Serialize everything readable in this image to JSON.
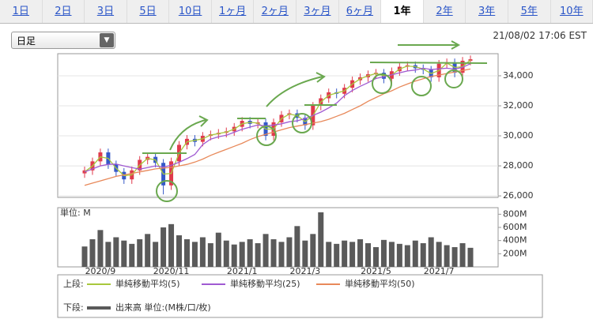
{
  "tabs": [
    {
      "label": "1日",
      "selected": false
    },
    {
      "label": "2日",
      "selected": false
    },
    {
      "label": "3日",
      "selected": false
    },
    {
      "label": "5日",
      "selected": false
    },
    {
      "label": "10日",
      "selected": false
    },
    {
      "label": "1ヶ月",
      "selected": false
    },
    {
      "label": "2ヶ月",
      "selected": false
    },
    {
      "label": "3ヶ月",
      "selected": false
    },
    {
      "label": "6ヶ月",
      "selected": false
    },
    {
      "label": "1年",
      "selected": true
    },
    {
      "label": "2年",
      "selected": false
    },
    {
      "label": "3年",
      "selected": false
    },
    {
      "label": "5年",
      "selected": false
    },
    {
      "label": "10年",
      "selected": false
    }
  ],
  "dropdown": "日足",
  "timestamp": "21/08/02 17:06 EST",
  "legend": {
    "upper_label": "上段:",
    "lower_label": "下段:"
  },
  "chart_data": [
    {
      "type": "candlestick",
      "up_color": "#e03a4c",
      "down_color": "#3558c8",
      "open": [
        27500,
        27700,
        28300,
        28900,
        28100,
        27600,
        27100,
        27700,
        28400,
        28600,
        28200,
        26700,
        28300,
        29400,
        29800,
        29600,
        30000,
        30100,
        30200,
        30300,
        30600,
        31000,
        30800,
        30900,
        30000,
        30900,
        31400,
        31500,
        31200,
        30700,
        32000,
        32500,
        32900,
        32800,
        33200,
        33700,
        33900,
        34100,
        34200,
        33800,
        34300,
        34600,
        34700,
        34500,
        34400,
        33900,
        34800,
        34900,
        34200,
        35000
      ],
      "high": [
        27950,
        28550,
        29150,
        29150,
        28350,
        27850,
        27950,
        28650,
        28850,
        28850,
        28450,
        28550,
        29650,
        30050,
        30050,
        30250,
        30350,
        30450,
        30550,
        30850,
        31250,
        31250,
        31150,
        31150,
        31150,
        31650,
        31750,
        31750,
        31450,
        32250,
        32750,
        33150,
        33150,
        33450,
        33950,
        34150,
        34350,
        34450,
        34450,
        34550,
        34850,
        34950,
        34950,
        34750,
        34650,
        35050,
        35150,
        35150,
        35250,
        35350
      ],
      "low": [
        27200,
        27400,
        28000,
        27800,
        27300,
        26800,
        26800,
        27400,
        28100,
        27900,
        26100,
        26400,
        28000,
        29100,
        29300,
        29300,
        29700,
        29800,
        29900,
        30000,
        30300,
        30500,
        30500,
        29700,
        29700,
        30600,
        31100,
        30900,
        30400,
        30400,
        31700,
        32200,
        32500,
        32500,
        32900,
        33400,
        33600,
        33800,
        33500,
        33500,
        34000,
        34300,
        34200,
        34100,
        33600,
        33600,
        34500,
        33900,
        33900,
        34700
      ],
      "close": [
        27700,
        28300,
        28900,
        28100,
        27600,
        27100,
        27700,
        28400,
        28600,
        28200,
        26700,
        28300,
        29400,
        29800,
        29600,
        30000,
        30100,
        30200,
        30300,
        30600,
        31000,
        30800,
        30900,
        30000,
        30900,
        31400,
        31500,
        31200,
        30700,
        32000,
        32500,
        32900,
        32800,
        33200,
        33700,
        33900,
        34100,
        34200,
        33800,
        34300,
        34600,
        34700,
        34500,
        34400,
        33900,
        34800,
        34900,
        34200,
        35000,
        35100
      ],
      "series": [
        {
          "name": "単純移動平均(5)",
          "color": "#a8c83c",
          "values": [
            27600,
            28000,
            28600,
            28500,
            27850,
            27350,
            27400,
            28050,
            28500,
            28400,
            27450,
            27500,
            28850,
            29600,
            29700,
            29800,
            30050,
            30150,
            30250,
            30450,
            30800,
            30900,
            30850,
            30450,
            30450,
            31150,
            31450,
            31350,
            30950,
            31350,
            32250,
            32700,
            32850,
            33000,
            33450,
            33800,
            34000,
            34150,
            34000,
            34050,
            34450,
            34650,
            34600,
            34450,
            34150,
            34350,
            34850,
            34550,
            34600,
            35050
          ]
        },
        {
          "name": "単純移動平均(25)",
          "color": "#a05ad2",
          "values": [
            27600,
            27800,
            28000,
            28100,
            28120,
            28000,
            27880,
            27780,
            27880,
            28000,
            27920,
            28040,
            28240,
            28480,
            28760,
            29420,
            29780,
            29940,
            30040,
            30240,
            30440,
            30580,
            30720,
            30660,
            30720,
            30800,
            30940,
            31000,
            31140,
            31360,
            31580,
            31860,
            32180,
            32680,
            33020,
            33300,
            33540,
            33820,
            33940,
            34060,
            34200,
            34320,
            34380,
            34500,
            34420,
            34460,
            34500,
            34440,
            34560,
            34800
          ]
        },
        {
          "name": "単純移動平均(50)",
          "color": "#e8895a",
          "values": [
            26700,
            26850,
            27000,
            27150,
            27300,
            27400,
            27500,
            27600,
            27700,
            27800,
            27850,
            27900,
            28000,
            28100,
            28250,
            28450,
            28700,
            28900,
            29100,
            29300,
            29500,
            29750,
            29950,
            30100,
            30250,
            30400,
            30550,
            30650,
            30750,
            30850,
            30950,
            31100,
            31300,
            31500,
            31750,
            32000,
            32300,
            32550,
            32800,
            33000,
            33250,
            33450,
            33650,
            33800,
            33950,
            34050,
            34150,
            34250,
            34350,
            34450
          ]
        }
      ],
      "ylim": [
        25900,
        35470
      ],
      "yticks": [
        {
          "value": 26000,
          "label": "26,000"
        },
        {
          "value": 28000,
          "label": "28,000"
        },
        {
          "value": 30000,
          "label": "30,000"
        },
        {
          "value": 32000,
          "label": "32,000"
        },
        {
          "value": 34000,
          "label": "34,000"
        }
      ],
      "grid": true
    },
    {
      "type": "bar",
      "unit_label": "単位: M",
      "name": "出来高 単位:(M株/口/枚)",
      "color": "#5a5a5a",
      "categories": [
        null,
        null,
        "2020/9",
        null,
        null,
        null,
        null,
        null,
        null,
        null,
        null,
        "2020/11",
        null,
        null,
        null,
        null,
        null,
        null,
        null,
        null,
        "2021/1",
        null,
        null,
        null,
        null,
        null,
        null,
        null,
        "2021/3",
        null,
        null,
        null,
        null,
        null,
        null,
        null,
        null,
        "2021/5",
        null,
        null,
        null,
        null,
        null,
        null,
        null,
        "2021/7",
        null,
        null,
        null,
        null
      ],
      "values": [
        310,
        420,
        560,
        380,
        450,
        400,
        350,
        420,
        500,
        380,
        600,
        650,
        480,
        420,
        380,
        450,
        360,
        520,
        400,
        340,
        380,
        420,
        360,
        500,
        420,
        380,
        450,
        620,
        400,
        500,
        830,
        380,
        350,
        400,
        380,
        420,
        360,
        300,
        410,
        380,
        350,
        330,
        400,
        360,
        450,
        380,
        330,
        300,
        360,
        290
      ],
      "ylim": [
        0,
        900
      ],
      "yticks": [
        {
          "value": 200,
          "label": "200M"
        },
        {
          "value": 400,
          "label": "400M"
        },
        {
          "value": 600,
          "label": "600M"
        },
        {
          "value": 800,
          "label": "800M"
        }
      ]
    }
  ]
}
